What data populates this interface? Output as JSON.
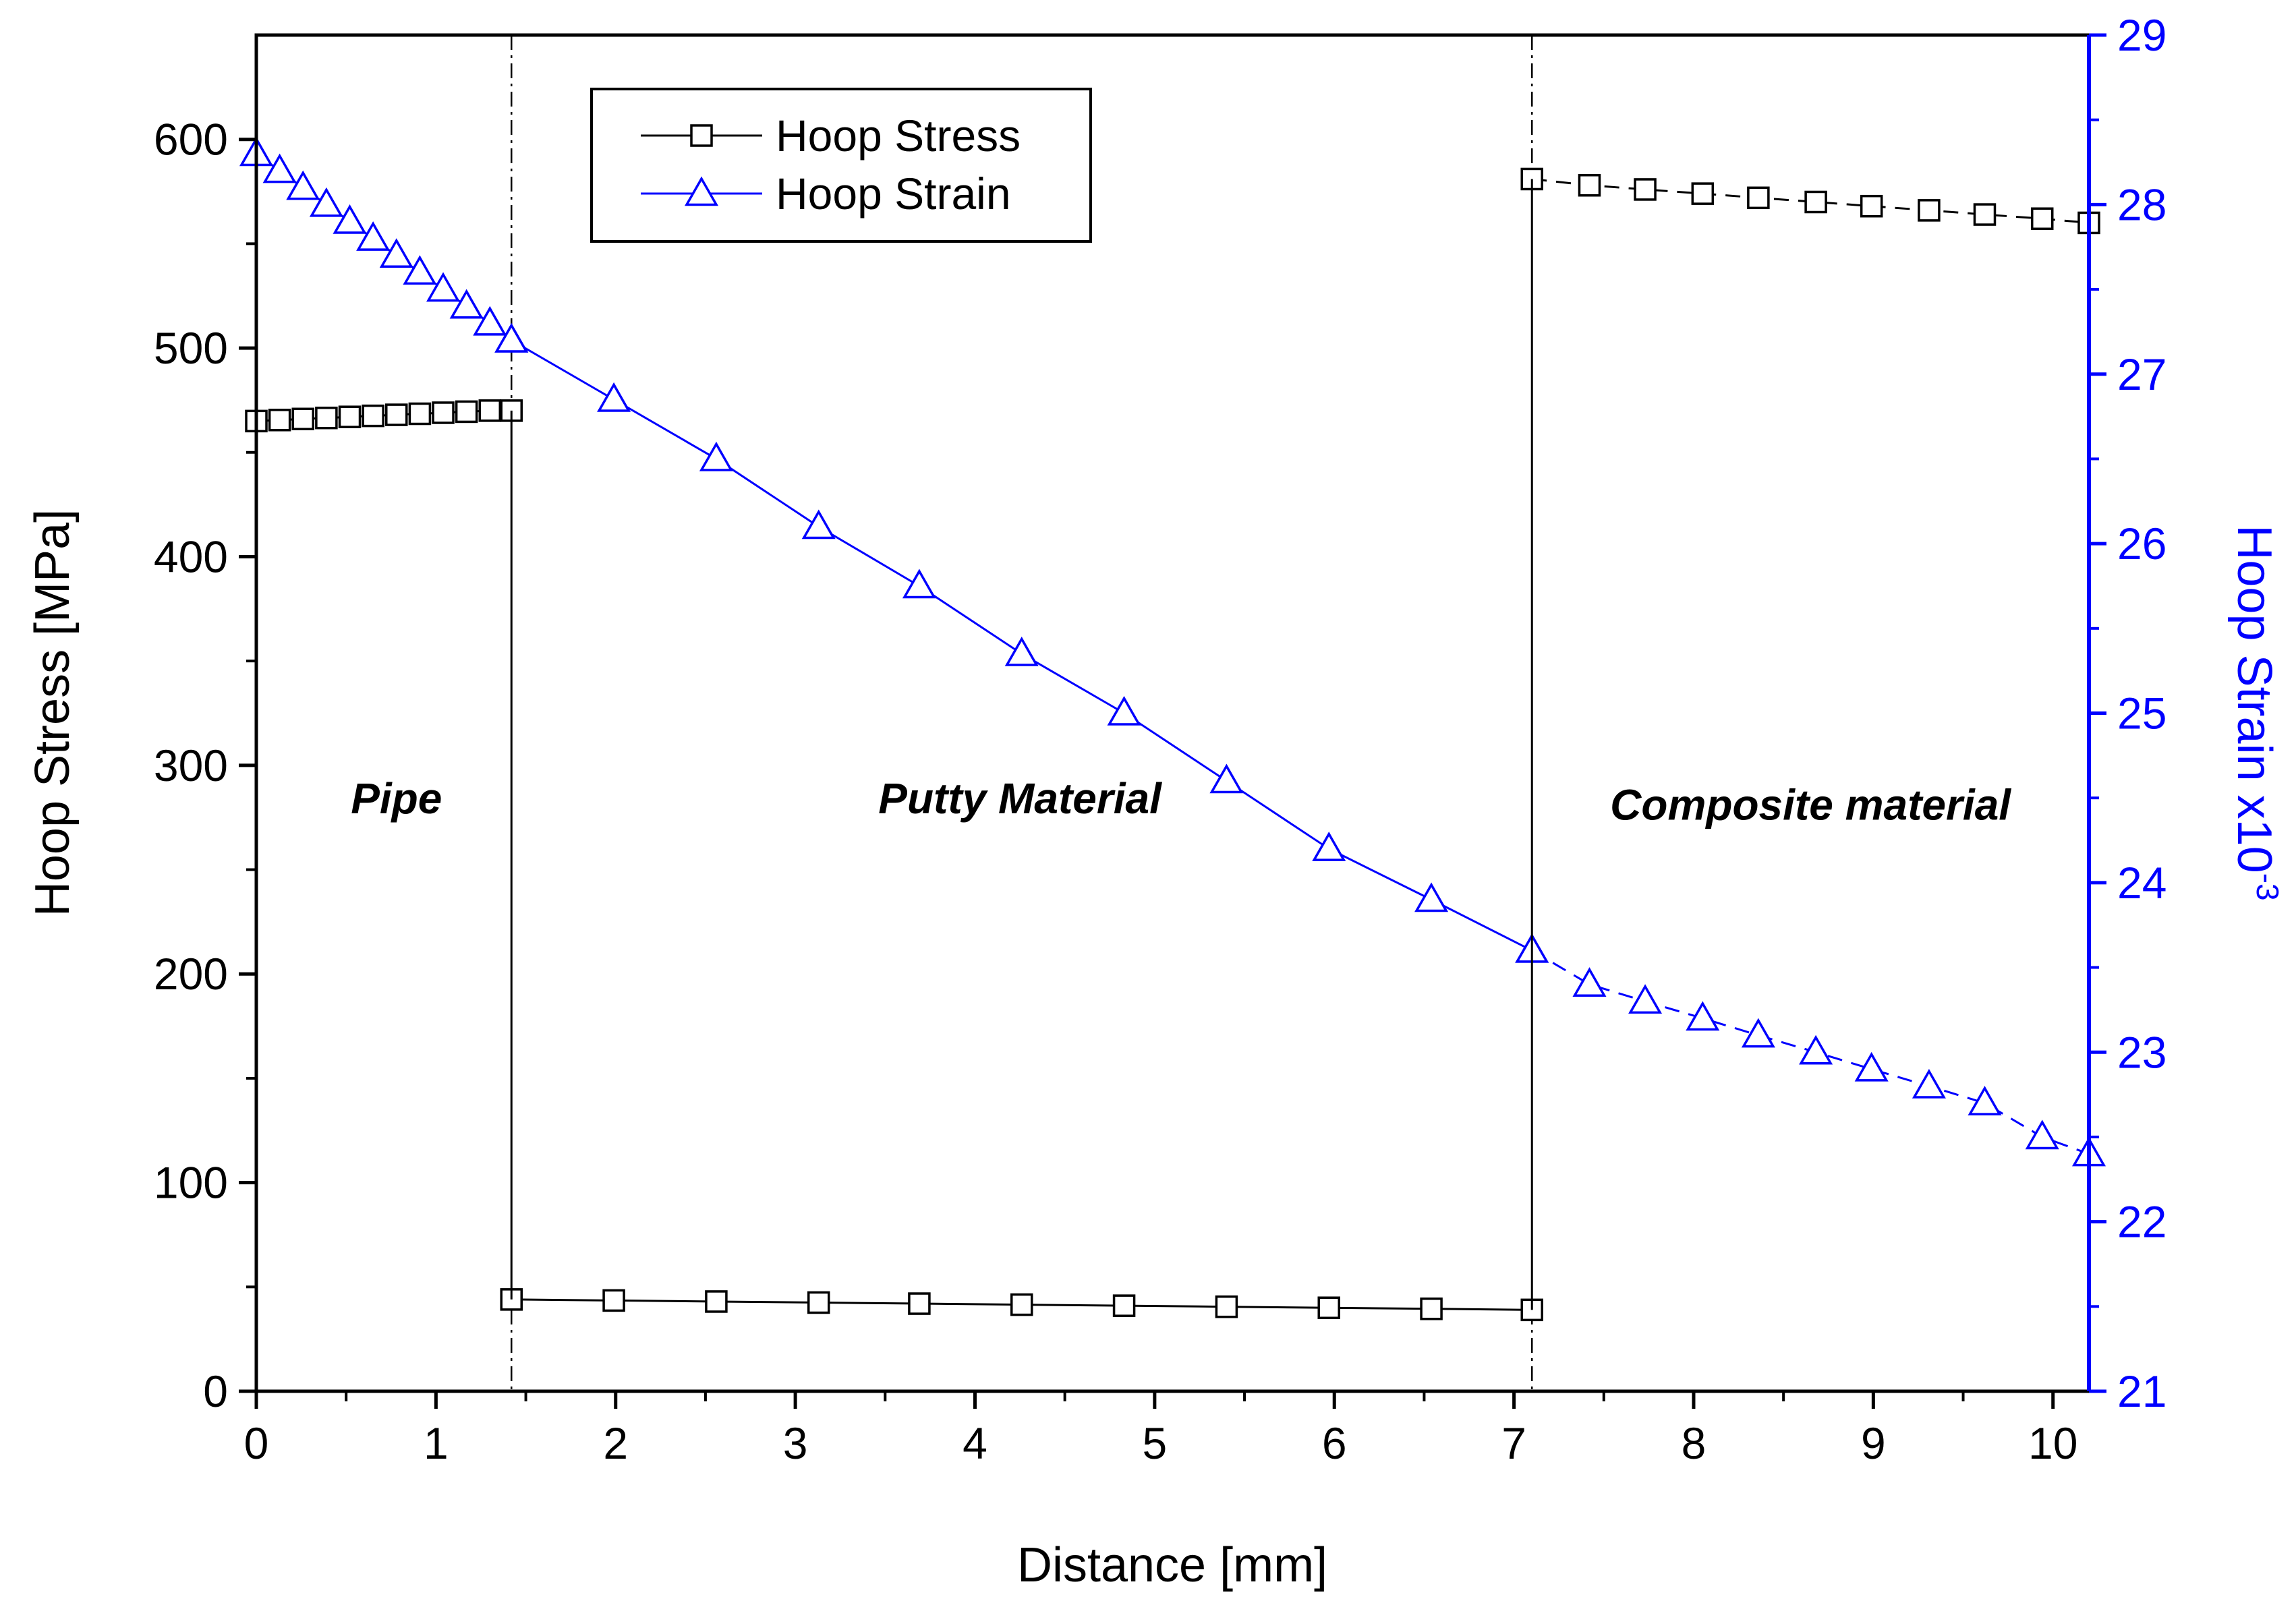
{
  "chart_data": {
    "type": "line",
    "title": "",
    "xlabel": "Distance [mm]",
    "ylabel": "Hoop Stress [MPa]",
    "y2label": "Hoop Strain x10",
    "y2label_exponent": "-3",
    "xlim": [
      0,
      10.2
    ],
    "ylim": [
      0,
      650
    ],
    "y2lim": [
      21,
      29
    ],
    "xticks": [
      0,
      1,
      2,
      3,
      4,
      5,
      6,
      7,
      8,
      9,
      10
    ],
    "yticks": [
      0,
      100,
      200,
      300,
      400,
      500,
      600
    ],
    "y2ticks": [
      21,
      22,
      23,
      24,
      25,
      26,
      27,
      28,
      29
    ],
    "grid": false,
    "legend_position": "top-left",
    "colors": {
      "stress": "#000000",
      "strain": "#0000ff",
      "axis_left": "#000000",
      "axis_right": "#0000ff"
    },
    "boundaries": [
      1.42,
      7.1
    ],
    "regions": [
      {
        "label": "Pipe",
        "x": 0.78,
        "y": 277
      },
      {
        "label": "Putty Material",
        "x": 4.25,
        "y": 277
      },
      {
        "label": "Composite material",
        "x": 8.65,
        "y": 274
      }
    ],
    "series": [
      {
        "name": "Hoop Stress",
        "axis": "left",
        "marker": "square",
        "segments": [
          {
            "style": "solid",
            "x": [
              0,
              0.13,
              0.26,
              0.39,
              0.52,
              0.65,
              0.78,
              0.91,
              1.04,
              1.17,
              1.3,
              1.42
            ],
            "y": [
              465,
              465.5,
              466,
              466.5,
              467,
              467.5,
              468,
              468.5,
              469,
              469.5,
              470,
              470
            ]
          },
          {
            "style": "solid",
            "x": [
              1.42,
              1.99,
              2.56,
              3.13,
              3.69,
              4.26,
              4.83,
              5.4,
              5.97,
              6.54,
              7.1
            ],
            "y": [
              44,
              43.5,
              43,
              42.5,
              42,
              41.5,
              41,
              40.5,
              40,
              39.5,
              39
            ]
          },
          {
            "style": "dashed",
            "x": [
              7.1,
              7.42,
              7.73,
              8.05,
              8.36,
              8.68,
              8.99,
              9.31,
              9.62,
              9.94,
              10.2
            ],
            "y": [
              581,
              578,
              576,
              574,
              572,
              570,
              568,
              566,
              564,
              562,
              560
            ]
          }
        ]
      },
      {
        "name": "Hoop Strain",
        "axis": "right",
        "marker": "triangle",
        "segments": [
          {
            "style": "solid",
            "x": [
              0,
              0.13,
              0.26,
              0.39,
              0.52,
              0.65,
              0.78,
              0.91,
              1.04,
              1.17,
              1.3,
              1.42
            ],
            "y": [
              28.3,
              28.2,
              28.1,
              28.0,
              27.9,
              27.8,
              27.7,
              27.6,
              27.5,
              27.4,
              27.3,
              27.2
            ]
          },
          {
            "style": "solid",
            "x": [
              1.42,
              1.99,
              2.56,
              3.13,
              3.69,
              4.26,
              4.83,
              5.4,
              5.97,
              6.54,
              7.1
            ],
            "y": [
              27.2,
              26.85,
              26.5,
              26.1,
              25.75,
              25.35,
              25.0,
              24.6,
              24.2,
              23.9,
              23.6
            ]
          },
          {
            "style": "dashed",
            "x": [
              7.1,
              7.42,
              7.73,
              8.05,
              8.36,
              8.68,
              8.99,
              9.31,
              9.62,
              9.94,
              10.2
            ],
            "y": [
              23.6,
              23.4,
              23.3,
              23.2,
              23.1,
              23.0,
              22.9,
              22.8,
              22.7,
              22.5,
              22.4
            ]
          }
        ]
      }
    ]
  }
}
